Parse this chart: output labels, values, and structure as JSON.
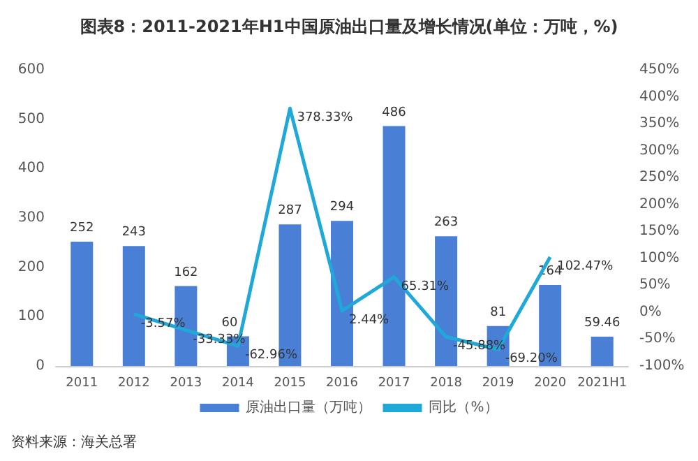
{
  "chart_data": {
    "type": "bar",
    "title": "图表8：2011-2021年H1中国原油出口量及增长情况(单位：万吨，%)",
    "categories": [
      "2011",
      "2012",
      "2013",
      "2014",
      "2015",
      "2016",
      "2017",
      "2018",
      "2019",
      "2020",
      "2021H1"
    ],
    "series": [
      {
        "name": "原油出口量（万吨）",
        "type": "bar",
        "color": "#4a7fd6",
        "values": [
          252,
          243,
          162,
          60,
          287,
          294,
          486,
          263,
          81,
          164,
          59.46
        ]
      },
      {
        "name": "同比（%）",
        "type": "line",
        "axis": "y2",
        "color": "#1fa8d8",
        "values": [
          null,
          -3.57,
          -33.33,
          -62.96,
          378.33,
          2.44,
          65.31,
          -45.88,
          -69.2,
          102.47,
          null
        ],
        "value_labels": [
          null,
          "-3.57%",
          "-33.33%",
          "-62.96%",
          "378.33%",
          "2.44%",
          "65.31%",
          "-45.88%",
          "-69.20%",
          "102.47%",
          null
        ]
      }
    ],
    "data_labels": true,
    "marker": "none",
    "grid": false,
    "legend": "bottom",
    "ylim": [
      0,
      600
    ],
    "yticks": [
      0,
      100,
      200,
      300,
      400,
      500,
      600
    ],
    "y2lim": [
      -100,
      450
    ],
    "y2ticks": [
      {
        "value": -100,
        "label": "-100%"
      },
      {
        "value": -50,
        "label": "-50%"
      },
      {
        "value": 0,
        "label": "0%"
      },
      {
        "value": 50,
        "label": "50%"
      },
      {
        "value": 100,
        "label": "100%"
      },
      {
        "value": 150,
        "label": "150%"
      },
      {
        "value": 200,
        "label": "200%"
      },
      {
        "value": 250,
        "label": "250%"
      },
      {
        "value": 300,
        "label": "300%"
      },
      {
        "value": 350,
        "label": "350%"
      },
      {
        "value": 400,
        "label": "400%"
      },
      {
        "value": 450,
        "label": "450%"
      }
    ],
    "annotations": [
      "资料来源：海关总署"
    ]
  }
}
